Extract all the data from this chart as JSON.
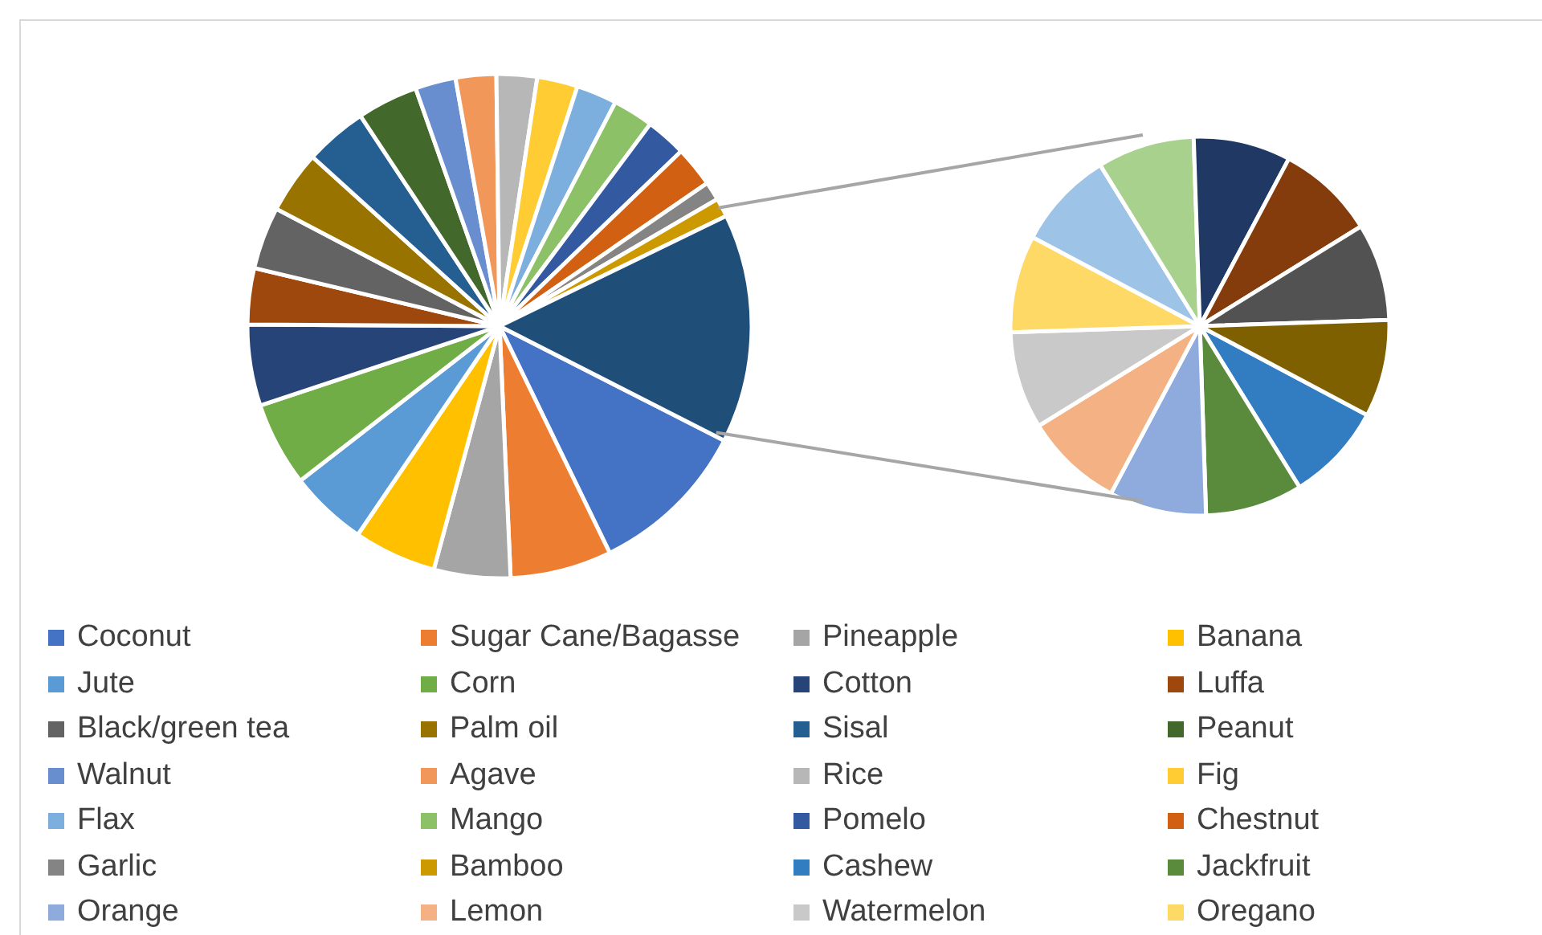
{
  "chart_data": [
    {
      "type": "pie",
      "categories": [
        "Coconut",
        "Sugar Cane/Bagasse",
        "Pineapple",
        "Banana",
        "Jute",
        "Corn",
        "Cotton",
        "Luffa",
        "Black/green tea",
        "Palm oil",
        "Sisal",
        "Peanut",
        "Walnut",
        "Agave",
        "Rice",
        "Fig",
        "Flax",
        "Mango",
        "Pomelo",
        "Chestnut",
        "Garlic",
        "Bamboo",
        null
      ],
      "values": [
        10.3,
        6.5,
        4.9,
        5.3,
        5,
        5.4,
        5.2,
        3.6,
        4,
        4,
        4,
        3.9,
        2.6,
        2.6,
        2.6,
        2.6,
        2.6,
        2.6,
        2.6,
        2.6,
        1.2,
        1.2,
        14.7
      ],
      "colors": [
        "#4472c4",
        "#ed7d31",
        "#a5a5a5",
        "#ffc000",
        "#5b9bd5",
        "#70ad47",
        "#264478",
        "#9e480e",
        "#636363",
        "#997300",
        "#255e91",
        "#43682b",
        "#698ed0",
        "#f1975a",
        "#b7b7b7",
        "#ffcd33",
        "#7cafdd",
        "#8cc168",
        "#335aa1",
        "#d26012",
        "#848484",
        "#cc9a00",
        "#1f4e79"
      ],
      "legend": "bottom"
    },
    {
      "type": "pie",
      "categories": [
        "Cashew",
        "Jackfruit",
        "Orange",
        "Lemon",
        "Watermelon",
        "Oregano",
        null,
        null,
        null,
        null,
        null,
        null
      ],
      "values": [
        8.4,
        8.3,
        8.3,
        8.4,
        8.3,
        8.3,
        8.4,
        8.3,
        8.3,
        8.4,
        8.3,
        8.3
      ],
      "colors": [
        "#327dc2",
        "#5a8a3c",
        "#8faadc",
        "#f4b183",
        "#c9c9c9",
        "#ffd966",
        "#9dc3e6",
        "#a9d18e",
        "#203864",
        "#843c0c",
        "#525252",
        "#7f6000"
      ],
      "legend": "bottom"
    }
  ]
}
